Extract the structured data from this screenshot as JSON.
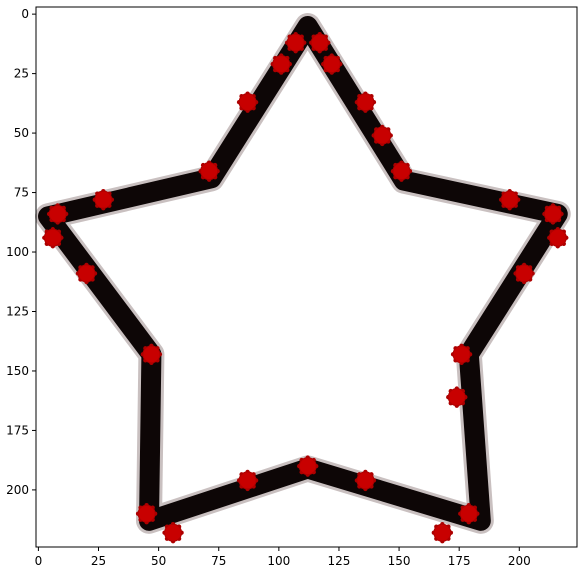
{
  "chart_data": {
    "type": "scatter",
    "title": "",
    "xlabel": "",
    "ylabel": "",
    "xlim": [
      -1,
      224
    ],
    "ylim": [
      224,
      -3
    ],
    "y_inverted": true,
    "grid": false,
    "x_ticks": [
      0,
      25,
      50,
      75,
      100,
      125,
      150,
      175,
      200
    ],
    "x_tick_labels": [
      "0",
      "25",
      "50",
      "75",
      "100",
      "125",
      "150",
      "175",
      "200"
    ],
    "y_ticks": [
      0,
      25,
      50,
      75,
      100,
      125,
      150,
      175,
      200
    ],
    "y_tick_labels": [
      "0",
      "25",
      "50",
      "75",
      "100",
      "125",
      "150",
      "175",
      "200"
    ],
    "outline": {
      "color": "#0d0606",
      "halo_color": "#9c8c8c",
      "vertices": [
        [
          112,
          5
        ],
        [
          152,
          70
        ],
        [
          216,
          84
        ],
        [
          179,
          143
        ],
        [
          184,
          213
        ],
        [
          112,
          191
        ],
        [
          46,
          213
        ],
        [
          47,
          143
        ],
        [
          4,
          85
        ],
        [
          72,
          69
        ]
      ]
    },
    "points": {
      "color": "#c80000",
      "edge_color": "#ad0000",
      "x": [
        107,
        117,
        101,
        122,
        87,
        136,
        143,
        71,
        151,
        27,
        196,
        8,
        214,
        6,
        216,
        20,
        202,
        47,
        176,
        174,
        112,
        87,
        136,
        45,
        179,
        56,
        168
      ],
      "y": [
        12,
        12,
        21,
        21,
        37,
        37,
        51,
        66,
        66,
        78,
        78,
        84,
        84,
        94,
        94,
        109,
        109,
        143,
        143,
        161,
        190,
        196,
        196,
        210,
        210,
        218,
        218
      ]
    }
  }
}
